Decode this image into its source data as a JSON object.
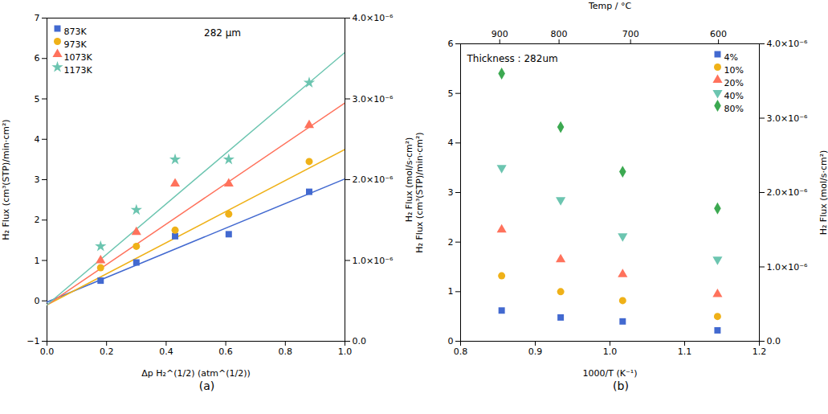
{
  "chart_data": [
    {
      "type": "scatter",
      "title": "(a)",
      "xlabel": "Δp H₂^(1/2) (atm^(1/2))",
      "ylabel": "H₂ Flux (cm³(STP)/min·cm²)",
      "y2label": "H₂ Flux (mol/s·cm²)",
      "xlim": [
        0.0,
        1.0
      ],
      "xticks": [
        {
          "value": 0,
          "label": "0.0"
        },
        0.2,
        0.4,
        0.6,
        0.8,
        {
          "value": 1,
          "label": "1.0"
        }
      ],
      "ylim": [
        -1,
        7
      ],
      "yticks": [
        {
          "value": -1,
          "label": "−1"
        },
        0,
        1,
        2,
        3,
        4,
        5,
        6,
        7
      ],
      "y2lim": [
        0.0,
        4e-06
      ],
      "y2ticks": [
        {
          "value": 0,
          "label": "0.0"
        },
        {
          "value": 1e-06,
          "label": "1.0×10⁻⁶"
        },
        {
          "value": 2e-06,
          "label": "2.0×10⁻⁶"
        },
        {
          "value": 3e-06,
          "label": "3.0×10⁻⁶"
        },
        {
          "value": 4e-06,
          "label": "4.0×10⁻⁶"
        }
      ],
      "grid": false,
      "legend": "upper left",
      "annotations": [
        "282 μm"
      ],
      "series": [
        {
          "name": "873K",
          "marker": "square",
          "x": [
            0.18,
            0.3,
            0.43,
            0.61,
            0.88
          ],
          "values": [
            0.5,
            0.95,
            1.6,
            1.65,
            2.7
          ],
          "fit": {
            "x": [
              0.0,
              1.0
            ],
            "values": [
              -0.03,
              3.02
            ]
          }
        },
        {
          "name": "973K",
          "marker": "circle",
          "x": [
            0.18,
            0.3,
            0.43,
            0.61,
            0.88
          ],
          "values": [
            0.82,
            1.35,
            1.75,
            2.15,
            3.45
          ],
          "fit": {
            "x": [
              0.0,
              1.0
            ],
            "values": [
              -0.1,
              3.75
            ]
          }
        },
        {
          "name": "1073K",
          "marker": "triangle",
          "x": [
            0.18,
            0.3,
            0.43,
            0.61,
            0.88
          ],
          "values": [
            1.0,
            1.7,
            2.9,
            2.9,
            4.35
          ],
          "fit": {
            "x": [
              0.0,
              1.0
            ],
            "values": [
              -0.1,
              4.9
            ]
          }
        },
        {
          "name": "1173K",
          "marker": "star",
          "x": [
            0.18,
            0.3,
            0.43,
            0.61,
            0.88
          ],
          "values": [
            1.35,
            2.25,
            3.5,
            3.5,
            5.4
          ],
          "fit": {
            "x": [
              0.0,
              1.0
            ],
            "values": [
              -0.1,
              6.15
            ]
          }
        }
      ]
    },
    {
      "type": "scatter",
      "title": "(b)",
      "xlabel": "1000/T (K⁻¹)",
      "x2label": "Temp / °C",
      "ylabel": "H₂ Flux (cm³(STP)/min·cm²)",
      "y2label": "H₂ Flux (mol/s·cm²)",
      "xlim": [
        0.8,
        1.2
      ],
      "xticks": [
        0.8,
        0.9,
        {
          "value": 1,
          "label": "1.0"
        },
        1.1,
        1.2
      ],
      "x2ticks": [
        {
          "value": 0.852406,
          "label": "900"
        },
        {
          "value": 0.931836,
          "label": "800"
        },
        {
          "value": 1.027591,
          "label": "700"
        },
        {
          "value": 1.145279,
          "label": "600"
        }
      ],
      "ylim": [
        0,
        6
      ],
      "yticks": [
        0,
        1,
        2,
        3,
        4,
        5,
        6
      ],
      "y2lim": [
        0.0,
        4e-06
      ],
      "y2ticks": [
        {
          "value": 0,
          "label": "0.0"
        },
        {
          "value": 1e-06,
          "label": "1.0×10⁻⁶"
        },
        {
          "value": 2e-06,
          "label": "2.0×10⁻⁶"
        },
        {
          "value": 3e-06,
          "label": "3.0×10⁻⁶"
        },
        {
          "value": 4e-06,
          "label": "4.0×10⁻⁶"
        }
      ],
      "grid": false,
      "legend": "upper right",
      "annotations": [
        "Thickness : 282um"
      ],
      "series": [
        {
          "name": "4%",
          "marker": "square",
          "x": [
            0.855,
            0.934,
            1.017,
            1.144
          ],
          "values": [
            0.62,
            0.48,
            0.4,
            0.22
          ]
        },
        {
          "name": "10%",
          "marker": "circle",
          "x": [
            0.855,
            0.934,
            1.017,
            1.144
          ],
          "values": [
            1.32,
            1.0,
            0.82,
            0.5
          ]
        },
        {
          "name": "20%",
          "marker": "triangle",
          "x": [
            0.855,
            0.934,
            1.017,
            1.144
          ],
          "values": [
            2.25,
            1.65,
            1.35,
            0.95
          ]
        },
        {
          "name": "40%",
          "marker": "triangle_down",
          "x": [
            0.855,
            0.934,
            1.017,
            1.144
          ],
          "values": [
            3.5,
            2.85,
            2.12,
            1.65
          ]
        },
        {
          "name": "80%",
          "marker": "diamond",
          "x": [
            0.855,
            0.934,
            1.017,
            1.144
          ],
          "values": [
            5.4,
            4.32,
            3.42,
            2.68
          ]
        }
      ]
    }
  ]
}
